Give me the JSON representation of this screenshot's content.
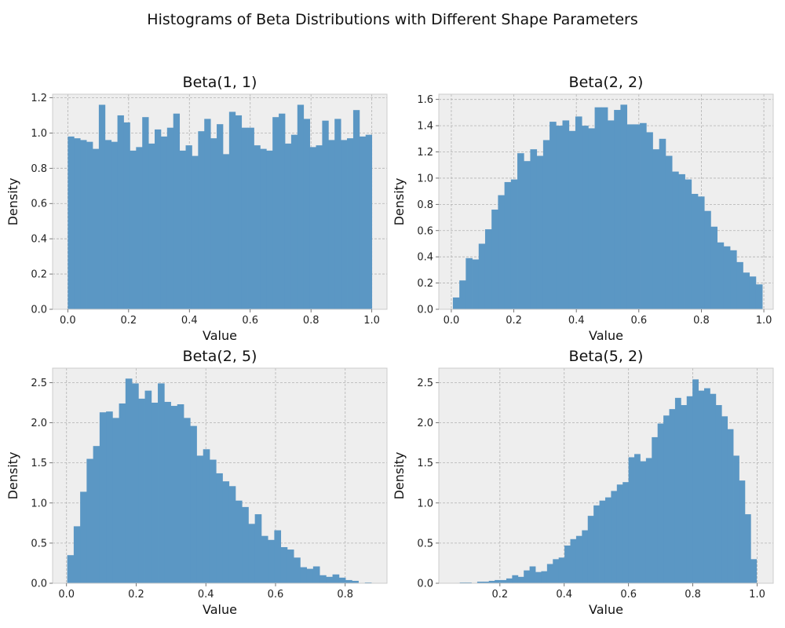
{
  "figure_title": "Histograms of Beta Distributions with Different Shape Parameters",
  "colors": {
    "bar": "#5b97c4",
    "plot_bg": "#eeeeee",
    "grid": "#b2b2b2",
    "frame": "#cccccc"
  },
  "chart_data": [
    {
      "type": "bar",
      "title": "Beta(1, 1)",
      "xlabel": "Value",
      "ylabel": "Density",
      "grid": true,
      "xlim": [
        -0.05,
        1.05
      ],
      "ylim": [
        0,
        1.22
      ],
      "xticks": [
        0.0,
        0.2,
        0.4,
        0.6,
        0.8,
        1.0
      ],
      "xtick_labels": [
        "0.0",
        "0.2",
        "0.4",
        "0.6",
        "0.8",
        "1.0"
      ],
      "yticks": [
        0.0,
        0.2,
        0.4,
        0.6,
        0.8,
        1.0,
        1.2
      ],
      "ytick_labels": [
        "0.0",
        "0.2",
        "0.4",
        "0.6",
        "0.8",
        "1.0",
        "1.2"
      ],
      "bin_start": 0.0,
      "bin_end": 1.0,
      "values": [
        0.98,
        0.97,
        0.96,
        0.95,
        0.91,
        1.16,
        0.96,
        0.95,
        1.1,
        1.06,
        0.9,
        0.92,
        1.09,
        0.94,
        1.02,
        0.98,
        1.03,
        1.11,
        0.9,
        0.93,
        0.87,
        1.01,
        1.08,
        0.97,
        1.05,
        0.88,
        1.12,
        1.1,
        1.03,
        1.03,
        0.93,
        0.91,
        0.9,
        1.09,
        1.11,
        0.94,
        0.99,
        1.16,
        1.08,
        0.92,
        0.93,
        1.07,
        0.96,
        1.08,
        0.96,
        0.97,
        1.13,
        0.98,
        0.99
      ]
    },
    {
      "type": "bar",
      "title": "Beta(2, 2)",
      "xlabel": "Value",
      "ylabel": "Density",
      "grid": true,
      "xlim": [
        -0.04,
        1.03
      ],
      "ylim": [
        0,
        1.64
      ],
      "xticks": [
        0.0,
        0.2,
        0.4,
        0.6,
        0.8,
        1.0
      ],
      "xtick_labels": [
        "0.0",
        "0.2",
        "0.4",
        "0.6",
        "0.8",
        "1.0"
      ],
      "yticks": [
        0.0,
        0.2,
        0.4,
        0.6,
        0.8,
        1.0,
        1.2,
        1.4,
        1.6
      ],
      "ytick_labels": [
        "0.0",
        "0.2",
        "0.4",
        "0.6",
        "0.8",
        "1.0",
        "1.2",
        "1.4",
        "1.6"
      ],
      "bin_start": 0.005,
      "bin_end": 0.995,
      "values": [
        0.09,
        0.22,
        0.39,
        0.38,
        0.5,
        0.61,
        0.76,
        0.87,
        0.97,
        0.99,
        1.19,
        1.13,
        1.22,
        1.17,
        1.29,
        1.43,
        1.4,
        1.44,
        1.36,
        1.47,
        1.4,
        1.38,
        1.54,
        1.54,
        1.44,
        1.52,
        1.56,
        1.41,
        1.41,
        1.42,
        1.35,
        1.22,
        1.3,
        1.17,
        1.05,
        1.03,
        0.99,
        0.88,
        0.86,
        0.75,
        0.63,
        0.51,
        0.48,
        0.45,
        0.36,
        0.28,
        0.25,
        0.19
      ]
    },
    {
      "type": "bar",
      "title": "Beta(2, 5)",
      "xlabel": "Value",
      "ylabel": "Density",
      "grid": true,
      "xlim": [
        -0.04,
        0.92
      ],
      "ylim": [
        0,
        2.68
      ],
      "xticks": [
        0.0,
        0.2,
        0.4,
        0.6,
        0.8
      ],
      "xtick_labels": [
        "0.0",
        "0.2",
        "0.4",
        "0.6",
        "0.8"
      ],
      "yticks": [
        0.0,
        0.5,
        1.0,
        1.5,
        2.0,
        2.5
      ],
      "ytick_labels": [
        "0.0",
        "0.5",
        "1.0",
        "1.5",
        "2.0",
        "2.5"
      ],
      "bin_start": 0.002,
      "bin_end": 0.875,
      "values": [
        0.35,
        0.71,
        1.14,
        1.55,
        1.71,
        2.13,
        2.14,
        2.06,
        2.24,
        2.55,
        2.49,
        2.3,
        2.4,
        2.25,
        2.49,
        2.26,
        2.21,
        2.23,
        2.06,
        1.96,
        1.59,
        1.67,
        1.54,
        1.37,
        1.27,
        1.21,
        1.03,
        0.95,
        0.74,
        0.86,
        0.59,
        0.54,
        0.66,
        0.45,
        0.42,
        0.32,
        0.2,
        0.18,
        0.21,
        0.1,
        0.08,
        0.11,
        0.07,
        0.04,
        0.03,
        0.005,
        0.01
      ]
    },
    {
      "type": "bar",
      "title": "Beta(5, 2)",
      "xlabel": "Value",
      "ylabel": "Density",
      "grid": true,
      "xlim": [
        0.01,
        1.05
      ],
      "ylim": [
        0,
        2.68
      ],
      "xticks": [
        0.2,
        0.4,
        0.6,
        0.8,
        1.0
      ],
      "xtick_labels": [
        "0.2",
        "0.4",
        "0.6",
        "0.8",
        "1.0"
      ],
      "yticks": [
        0.0,
        0.5,
        1.0,
        1.5,
        2.0,
        2.5
      ],
      "ytick_labels": [
        "0.0",
        "0.5",
        "1.0",
        "1.5",
        "2.0",
        "2.5"
      ],
      "bin_start": 0.057,
      "bin_end": 0.998,
      "values": [
        0.005,
        0.01,
        0.01,
        0.0,
        0.02,
        0.02,
        0.03,
        0.04,
        0.04,
        0.06,
        0.1,
        0.08,
        0.16,
        0.21,
        0.14,
        0.15,
        0.24,
        0.3,
        0.32,
        0.47,
        0.55,
        0.59,
        0.66,
        0.84,
        0.97,
        1.03,
        1.07,
        1.15,
        1.23,
        1.26,
        1.57,
        1.61,
        1.52,
        1.56,
        1.82,
        1.99,
        2.09,
        2.17,
        2.31,
        2.22,
        2.33,
        2.54,
        2.4,
        2.43,
        2.36,
        2.22,
        2.08,
        1.92,
        1.59,
        1.28,
        0.86,
        0.3
      ]
    }
  ]
}
